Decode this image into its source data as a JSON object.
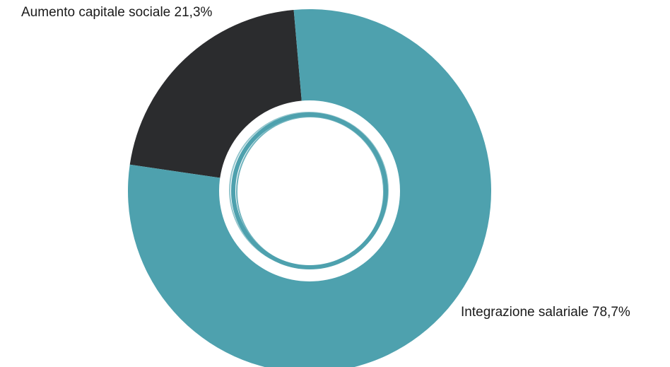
{
  "chart_data": {
    "type": "donut",
    "categories": [
      "Aumento capitale sociale",
      "Integrazione salariale"
    ],
    "values": [
      21.3,
      78.7
    ],
    "value_labels": [
      "21,3%",
      "78,7%"
    ],
    "colors": [
      "#2b2c2e",
      "#4ea1ae"
    ]
  }
}
